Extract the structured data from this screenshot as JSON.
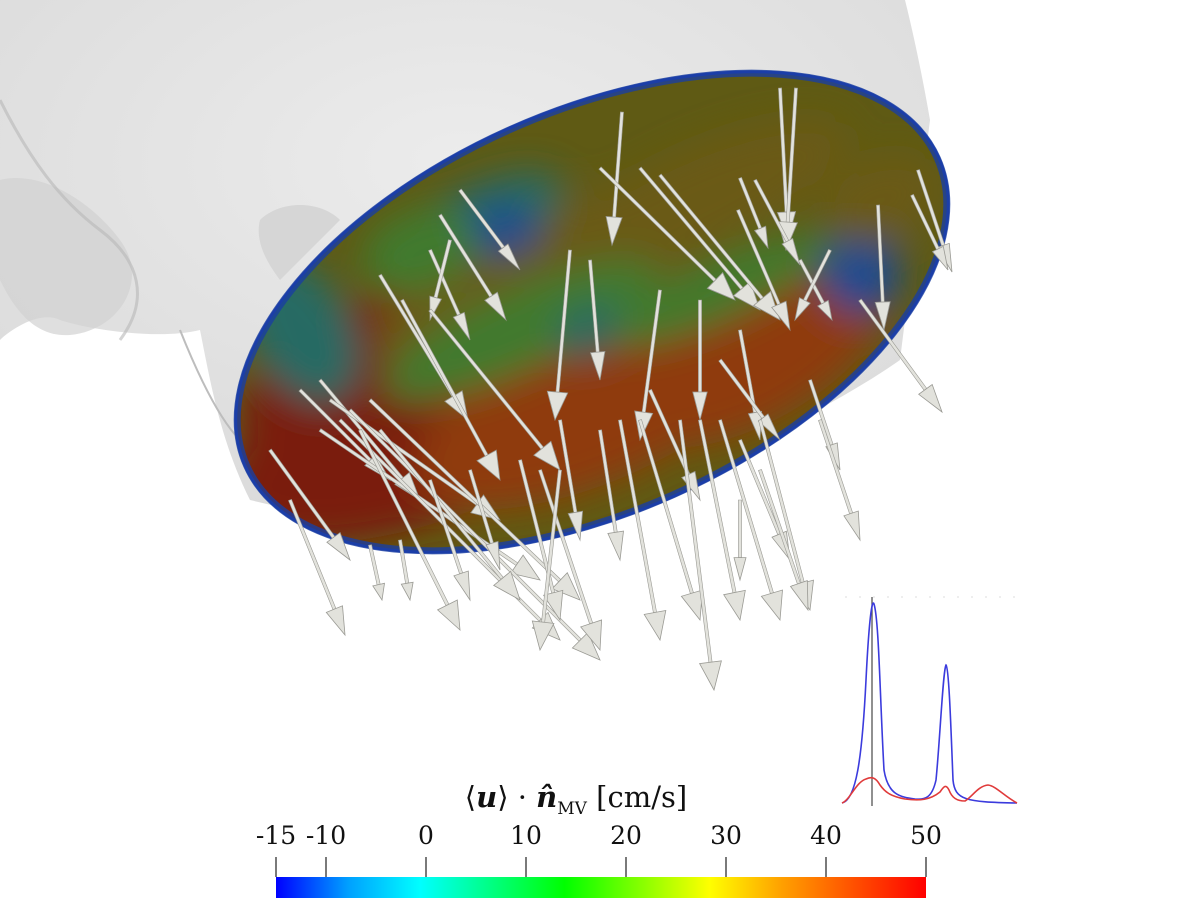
{
  "colorbar": {
    "title_u": "u",
    "title_n": "n̂",
    "title_sub": "MV",
    "title_unit": "[cm/s]",
    "min": -15,
    "max": 50,
    "ticks": [
      "-15",
      "-10",
      "0",
      "10",
      "20",
      "30",
      "40",
      "50"
    ],
    "tick_values": [
      -15,
      -10,
      0,
      10,
      20,
      30,
      40,
      50
    ],
    "colormap": [
      "#0000ff",
      "#00a0ff",
      "#00ffff",
      "#00ff80",
      "#00ff00",
      "#80ff00",
      "#ffff00",
      "#ffa000",
      "#ff5000",
      "#ff0000"
    ]
  },
  "surface": {
    "wall_color": "#e6e6e6",
    "rim_color": "#1e3cc8",
    "field_colors": [
      "#7a1b08",
      "#8f3a10",
      "#6b5a14",
      "#3f7a2e",
      "#256a63",
      "#1b4b8f"
    ]
  },
  "arrows": {
    "color": "#e2e2dc",
    "outline": "#9a9a94"
  },
  "inset": {
    "series": [
      {
        "color": "#3b3bdd"
      },
      {
        "color": "#e03b3b"
      }
    ],
    "cursor_color": "#555555"
  }
}
